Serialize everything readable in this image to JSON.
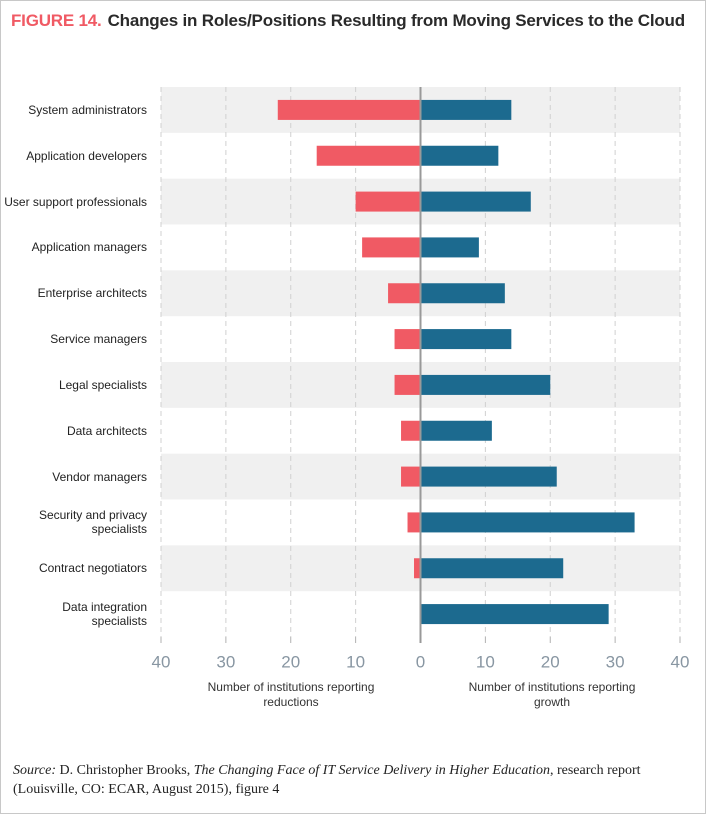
{
  "chart_data": {
    "type": "diverging_bar",
    "figure_label": "FIGURE 14.",
    "title": "Changes in Roles/Positions Resulting from Moving Services to the Cloud",
    "categories": [
      "System administrators",
      "Application developers",
      "User support professionals",
      "Application managers",
      "Enterprise architects",
      "Service managers",
      "Legal specialists",
      "Data architects",
      "Vendor managers",
      "Security and privacy\nspecialists",
      "Contract negotiators",
      "Data integration\nspecialists"
    ],
    "series": [
      {
        "color": "#f05a64",
        "values": [
          -22,
          -16,
          -10,
          -9,
          -5,
          -4,
          -4,
          -3,
          -3,
          -2,
          -1,
          0
        ]
      },
      {
        "color": "#1c6a8f",
        "values": [
          14,
          12,
          17,
          9,
          13,
          14,
          20,
          11,
          21,
          33,
          22,
          29
        ]
      }
    ],
    "xlim": [
      -40,
      40
    ],
    "xticks": [
      {
        "value": -40,
        "label": "40"
      },
      {
        "value": -30,
        "label": "30"
      },
      {
        "value": -20,
        "label": "20"
      },
      {
        "value": -10,
        "label": "10"
      },
      0,
      10,
      20,
      30,
      40
    ],
    "x_label_reductions": "Number of institutions reporting\nreductions",
    "x_label_growth": "Number of institutions reporting\ngrowth",
    "grid": true,
    "band_color": "#f0f0f0",
    "source": {
      "label": "Source:",
      "author": "D. Christopher Brooks,",
      "work": "The Changing Face of IT Service Delivery in Higher Education",
      "rest": ", research report (Louisville, CO: ECAR, August 2015), figure 4"
    }
  }
}
